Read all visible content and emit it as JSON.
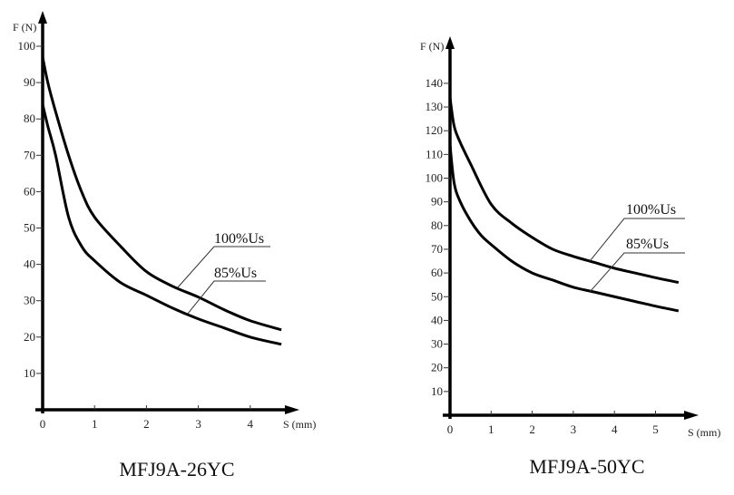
{
  "chart_data": [
    {
      "type": "line",
      "title": "MFJ9A-26YC",
      "xlabel": "S (mm)",
      "ylabel": "F (N)",
      "xlim": [
        0,
        4.6
      ],
      "ylim": [
        0,
        100
      ],
      "x_ticks": [
        "0",
        "1",
        "2",
        "3",
        "4"
      ],
      "y_ticks": [
        "10",
        "20",
        "30",
        "40",
        "50",
        "60",
        "70",
        "80",
        "90",
        "100"
      ],
      "grid": false,
      "series": [
        {
          "name": "100%Us",
          "x": [
            0,
            0.1,
            0.25,
            0.5,
            0.75,
            1,
            1.5,
            2,
            2.5,
            3,
            3.5,
            4,
            4.6
          ],
          "y": [
            97,
            90,
            82,
            70,
            60,
            53,
            45,
            38,
            34,
            31,
            27.5,
            24.5,
            22
          ]
        },
        {
          "name": "85%Us",
          "x": [
            0,
            0.1,
            0.25,
            0.5,
            0.75,
            1,
            1.5,
            2,
            2.5,
            3,
            3.5,
            4,
            4.6
          ],
          "y": [
            84,
            78,
            70,
            53,
            45,
            41,
            35,
            31.5,
            28,
            25,
            22.5,
            20,
            18
          ]
        }
      ]
    },
    {
      "type": "line",
      "title": "MFJ9A-50YC",
      "xlabel": "S (mm)",
      "ylabel": "F (N)",
      "xlim": [
        0,
        5.56
      ],
      "ylim": [
        0,
        140
      ],
      "x_ticks": [
        "0",
        "1",
        "2",
        "3",
        "4",
        "5"
      ],
      "y_ticks": [
        "10",
        "20",
        "30",
        "40",
        "50",
        "60",
        "70",
        "80",
        "90",
        "100",
        "110",
        "120",
        "130",
        "140"
      ],
      "grid": false,
      "series": [
        {
          "name": "100%Us",
          "x": [
            0,
            0.1,
            0.25,
            0.5,
            1,
            1.5,
            2,
            2.5,
            3,
            3.5,
            4,
            4.5,
            5,
            5.56
          ],
          "y": [
            134,
            122,
            115,
            106,
            89,
            81,
            75,
            70,
            67,
            64.5,
            62,
            60,
            58,
            56
          ]
        },
        {
          "name": "85%Us",
          "x": [
            0,
            0.1,
            0.25,
            0.5,
            0.75,
            1,
            1.5,
            2,
            2.5,
            3,
            3.5,
            4,
            4.5,
            5,
            5.56
          ],
          "y": [
            114,
            98,
            90,
            82,
            76,
            72,
            65,
            60,
            57,
            54,
            52,
            50,
            48,
            46,
            44
          ]
        }
      ]
    }
  ]
}
